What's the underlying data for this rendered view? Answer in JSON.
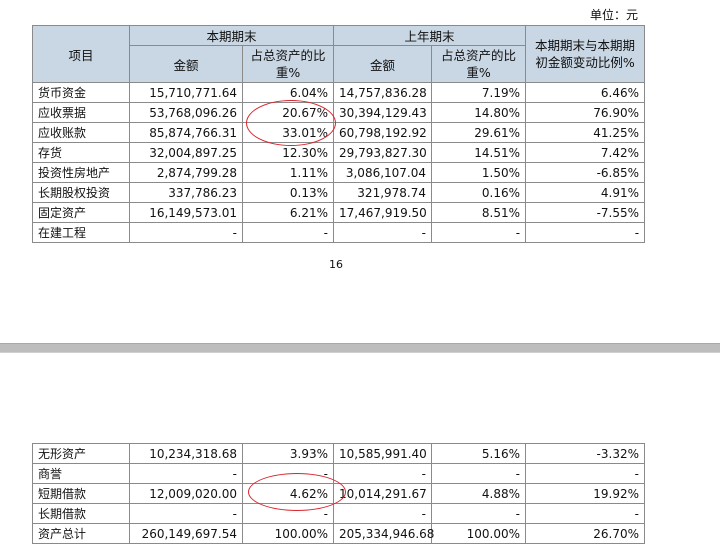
{
  "unit_label": "单位：元",
  "header": {
    "item": "项目",
    "current_period": "本期期末",
    "prior_year": "上年期末",
    "change": "本期期末与本期期初金额变动比例%",
    "amount": "金额",
    "ratio": "占总资产的比重%"
  },
  "rows_top": [
    {
      "name": "货币资金",
      "cur": "15,710,771.64",
      "cur_pct": "6.04%",
      "prev": "14,757,836.28",
      "prev_pct": "7.19%",
      "chg": "6.46%"
    },
    {
      "name": "应收票据",
      "cur": "53,768,096.26",
      "cur_pct": "20.67%",
      "prev": "30,394,129.43",
      "prev_pct": "14.80%",
      "chg": "76.90%"
    },
    {
      "name": "应收账款",
      "cur": "85,874,766.31",
      "cur_pct": "33.01%",
      "prev": "60,798,192.92",
      "prev_pct": "29.61%",
      "chg": "41.25%"
    },
    {
      "name": "存货",
      "cur": "32,004,897.25",
      "cur_pct": "12.30%",
      "prev": "29,793,827.30",
      "prev_pct": "14.51%",
      "chg": "7.42%"
    },
    {
      "name": "投资性房地产",
      "cur": "2,874,799.28",
      "cur_pct": "1.11%",
      "prev": "3,086,107.04",
      "prev_pct": "1.50%",
      "chg": "-6.85%"
    },
    {
      "name": "长期股权投资",
      "cur": "337,786.23",
      "cur_pct": "0.13%",
      "prev": "321,978.74",
      "prev_pct": "0.16%",
      "chg": "4.91%"
    },
    {
      "name": "固定资产",
      "cur": "16,149,573.01",
      "cur_pct": "6.21%",
      "prev": "17,467,919.50",
      "prev_pct": "8.51%",
      "chg": "-7.55%"
    },
    {
      "name": "在建工程",
      "cur": "-",
      "cur_pct": "-",
      "prev": "-",
      "prev_pct": "-",
      "chg": "-"
    }
  ],
  "page_number": "16",
  "rows_bottom": [
    {
      "name": "无形资产",
      "cur": "10,234,318.68",
      "cur_pct": "3.93%",
      "prev": "10,585,991.40",
      "prev_pct": "5.16%",
      "chg": "-3.32%"
    },
    {
      "name": "商誉",
      "cur": "-",
      "cur_pct": "-",
      "prev": "-",
      "prev_pct": "-",
      "chg": "-"
    },
    {
      "name": "短期借款",
      "cur": "12,009,020.00",
      "cur_pct": "4.62%",
      "prev": "10,014,291.67",
      "prev_pct": "4.88%",
      "chg": "19.92%"
    },
    {
      "name": "长期借款",
      "cur": "-",
      "cur_pct": "-",
      "prev": "-",
      "prev_pct": "-",
      "chg": "-"
    },
    {
      "name": "资产总计",
      "cur": "260,149,697.54",
      "cur_pct": "100.00%",
      "prev": "205,334,946.68",
      "prev_pct": "100.00%",
      "chg": "26.70%"
    }
  ],
  "colors": {
    "header_bg": "#c9d6e3",
    "annotation": "#d8262e",
    "page_gap": "#bdbdbd"
  }
}
